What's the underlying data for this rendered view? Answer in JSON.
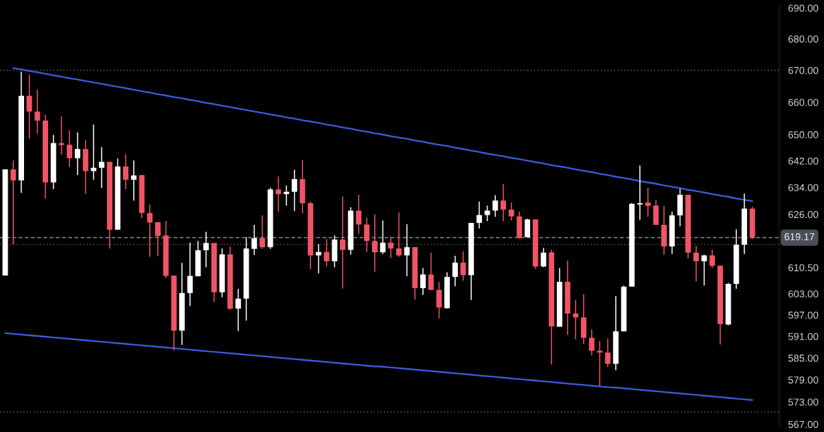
{
  "chart_data": {
    "type": "candlestick",
    "categories": [
      null,
      null,
      null,
      null,
      null,
      null,
      null,
      null,
      null,
      null,
      null,
      null,
      null,
      null,
      null,
      null,
      null,
      null,
      null,
      null,
      null,
      null,
      null,
      null,
      null,
      null,
      null,
      null,
      null,
      null,
      null,
      null,
      null,
      null,
      null,
      null,
      null,
      null,
      null,
      null,
      null,
      null,
      null,
      null,
      null,
      null,
      null,
      null,
      null,
      null,
      null,
      null,
      null,
      null,
      null,
      null,
      null,
      null,
      null,
      null,
      null,
      null,
      null,
      null,
      null,
      null,
      null,
      null,
      null,
      null,
      null,
      null,
      null,
      null,
      null,
      null,
      null,
      null,
      null,
      null,
      null,
      null,
      null,
      null,
      null,
      null,
      null,
      null,
      null,
      null,
      null,
      null,
      null,
      null
    ],
    "ohlc": [
      [
        608.2,
        639.4,
        608.2,
        639.4
      ],
      [
        639.4,
        642.1,
        617.2,
        636.1
      ],
      [
        636.1,
        669.6,
        632.4,
        662.0
      ],
      [
        662.0,
        668.7,
        648.8,
        657.1
      ],
      [
        657.1,
        663.9,
        650.2,
        654.3
      ],
      [
        654.3,
        656.1,
        630.7,
        635.5
      ],
      [
        635.5,
        649.9,
        633.5,
        647.4
      ],
      [
        647.4,
        655.6,
        643.9,
        646.8
      ],
      [
        646.9,
        651.3,
        640.2,
        642.8
      ],
      [
        642.8,
        650.7,
        637.7,
        645.6
      ],
      [
        645.6,
        648.3,
        632.1,
        638.9
      ],
      [
        638.9,
        653.1,
        636.3,
        639.9
      ],
      [
        639.9,
        646.2,
        633.8,
        641.7
      ],
      [
        641.7,
        641.7,
        616.0,
        621.5
      ],
      [
        621.5,
        642.7,
        621.5,
        640.3
      ],
      [
        640.3,
        644.0,
        633.5,
        636.3
      ],
      [
        636.3,
        642.1,
        630.1,
        637.6
      ],
      [
        637.7,
        637.7,
        624.9,
        626.4
      ],
      [
        626.4,
        628.9,
        613.6,
        623.6
      ],
      [
        623.7,
        623.7,
        613.8,
        619.6
      ],
      [
        619.8,
        624.0,
        607.5,
        608.1
      ],
      [
        608.2,
        608.2,
        587.1,
        592.6
      ],
      [
        592.6,
        611.8,
        588.6,
        603.2
      ],
      [
        603.2,
        617.7,
        599.5,
        608.1
      ],
      [
        608.0,
        618.2,
        608.0,
        615.5
      ],
      [
        615.5,
        620.9,
        610.6,
        617.6
      ],
      [
        617.6,
        617.6,
        600.7,
        603.4
      ],
      [
        603.4,
        616.0,
        602.0,
        614.3
      ],
      [
        614.3,
        616.6,
        598.5,
        598.7
      ],
      [
        598.8,
        604.4,
        592.5,
        601.6
      ],
      [
        601.6,
        619.3,
        595.4,
        616.0
      ],
      [
        615.9,
        622.9,
        614.1,
        619.0
      ],
      [
        619.0,
        625.7,
        615.9,
        616.4
      ],
      [
        616.4,
        633.9,
        615.9,
        633.4
      ],
      [
        633.4,
        637.3,
        626.8,
        632.0
      ],
      [
        632.0,
        634.6,
        628.6,
        632.7
      ],
      [
        632.7,
        639.3,
        627.0,
        636.5
      ],
      [
        636.5,
        642.3,
        626.3,
        629.3
      ],
      [
        629.3,
        629.8,
        610.1,
        614.0
      ],
      [
        614.0,
        617.3,
        608.8,
        615.0
      ],
      [
        615.0,
        618.8,
        610.8,
        612.3
      ],
      [
        612.3,
        619.8,
        610.6,
        618.6
      ],
      [
        618.6,
        631.3,
        604.5,
        615.6
      ],
      [
        615.6,
        628.1,
        614.2,
        627.1
      ],
      [
        627.1,
        631.8,
        620.2,
        623.0
      ],
      [
        623.0,
        625.0,
        615.1,
        618.2
      ],
      [
        618.2,
        626.0,
        609.3,
        614.9
      ],
      [
        614.9,
        624.2,
        614.4,
        617.7
      ],
      [
        617.7,
        619.5,
        613.3,
        616.0
      ],
      [
        616.0,
        626.6,
        613.6,
        614.0
      ],
      [
        614.0,
        623.1,
        608.0,
        616.4
      ],
      [
        616.4,
        616.4,
        601.3,
        604.6
      ],
      [
        604.6,
        610.4,
        602.7,
        608.5
      ],
      [
        608.5,
        614.8,
        604.0,
        604.1
      ],
      [
        604.1,
        606.4,
        596.0,
        599.1
      ],
      [
        598.9,
        609.1,
        598.8,
        607.8
      ],
      [
        607.8,
        613.9,
        605.1,
        611.9
      ],
      [
        611.9,
        615.2,
        606.7,
        608.3
      ],
      [
        608.3,
        623.5,
        601.2,
        623.5
      ],
      [
        623.5,
        629.8,
        621.9,
        625.8
      ],
      [
        625.8,
        628.6,
        624.0,
        627.1
      ],
      [
        627.1,
        631.7,
        625.3,
        630.1
      ],
      [
        630.1,
        635.0,
        624.0,
        627.4
      ],
      [
        627.4,
        629.5,
        624.2,
        625.4
      ],
      [
        625.4,
        626.8,
        618.8,
        619.1
      ],
      [
        619.3,
        624.7,
        619.3,
        624.5
      ],
      [
        624.5,
        624.5,
        610.1,
        610.8
      ],
      [
        610.8,
        616.2,
        610.6,
        614.8
      ],
      [
        614.9,
        615.7,
        583.2,
        593.8
      ],
      [
        593.7,
        610.4,
        593.7,
        606.4
      ],
      [
        606.4,
        612.5,
        591.4,
        597.4
      ],
      [
        597.4,
        601.2,
        590.2,
        596.3
      ],
      [
        596.3,
        602.9,
        588.8,
        590.6
      ],
      [
        590.6,
        592.9,
        585.7,
        587.0
      ],
      [
        587.0,
        589.7,
        577.2,
        586.5
      ],
      [
        586.5,
        590.4,
        582.5,
        583.4
      ],
      [
        583.4,
        602.3,
        581.6,
        592.4
      ],
      [
        592.4,
        605.3,
        592.4,
        605.0
      ],
      [
        605.0,
        629.3,
        605.0,
        629.1
      ],
      [
        628.9,
        640.6,
        624.4,
        629.3
      ],
      [
        629.5,
        633.9,
        625.3,
        628.5
      ],
      [
        628.6,
        630.3,
        622.9,
        622.9
      ],
      [
        622.9,
        628.5,
        614.2,
        616.6
      ],
      [
        616.6,
        626.8,
        614.4,
        625.7
      ],
      [
        625.7,
        633.6,
        622.5,
        631.8
      ],
      [
        631.8,
        631.8,
        613.2,
        614.8
      ],
      [
        614.8,
        616.8,
        606.5,
        612.3
      ],
      [
        612.3,
        614.2,
        605.3,
        614.0
      ],
      [
        614.0,
        615.7,
        610.4,
        611.0
      ],
      [
        611.0,
        611.0,
        588.7,
        594.4
      ],
      [
        594.3,
        606.1,
        594.1,
        605.8
      ],
      [
        605.8,
        621.6,
        604.4,
        617.1
      ],
      [
        617.1,
        632.2,
        614.4,
        627.7
      ],
      [
        627.7,
        628.3,
        618.8,
        619.17
      ]
    ],
    "colors": [
      "#ffffff",
      "#ef5566",
      "#ffffff",
      "#ef5566",
      "#ef5566",
      "#ef5566",
      "#ffffff",
      "#ef5566",
      "#ef5566",
      "#ffffff",
      "#ef5566",
      "#ffffff",
      "#ffffff",
      "#ef5566",
      "#ffffff",
      "#ef5566",
      "#ffffff",
      "#ef5566",
      "#ef5566",
      "#ef5566",
      "#ef5566",
      "#ef5566",
      "#ffffff",
      "#ffffff",
      "#ffffff",
      "#ffffff",
      "#ef5566",
      "#ffffff",
      "#ef5566",
      "#ffffff",
      "#ffffff",
      "#ffffff",
      "#ef5566",
      "#ffffff",
      "#ef5566",
      "#ffffff",
      "#ffffff",
      "#ef5566",
      "#ef5566",
      "#ffffff",
      "#ef5566",
      "#ffffff",
      "#ef5566",
      "#ffffff",
      "#ef5566",
      "#ef5566",
      "#ef5566",
      "#ffffff",
      "#ef5566",
      "#ef5566",
      "#ffffff",
      "#ef5566",
      "#ffffff",
      "#ef5566",
      "#ef5566",
      "#ffffff",
      "#ffffff",
      "#ef5566",
      "#ffffff",
      "#ffffff",
      "#ffffff",
      "#ffffff",
      "#ef5566",
      "#ef5566",
      "#ef5566",
      "#ffffff",
      "#ef5566",
      "#ffffff",
      "#ef5566",
      "#ffffff",
      "#ef5566",
      "#ef5566",
      "#ef5566",
      "#ef5566",
      "#ef5566",
      "#ef5566",
      "#ffffff",
      "#ffffff",
      "#ffffff",
      "#ffffff",
      "#ef5566",
      "#ef5566",
      "#ef5566",
      "#ffffff",
      "#ffffff",
      "#ef5566",
      "#ef5566",
      "#ffffff",
      "#ef5566",
      "#ef5566",
      "#ffffff",
      "#ffffff",
      "#ffffff",
      "#ef5566"
    ],
    "series": [
      {
        "type": "line",
        "color": "#3b5bdb",
        "values": [
          null,
          670.7,
          670.3,
          669.8,
          669.4,
          668.9,
          668.4,
          668.0,
          667.5,
          667.1,
          666.6,
          666.2,
          665.7,
          665.3,
          664.8,
          664.4,
          663.9,
          663.4,
          663.0,
          662.5,
          662.1,
          661.6,
          661.2,
          660.7,
          660.3,
          659.8,
          659.4,
          658.9,
          658.5,
          658.0,
          657.6,
          657.1,
          656.7,
          656.2,
          655.8,
          655.3,
          654.9,
          654.4,
          654.0,
          653.6,
          653.1,
          652.7,
          652.2,
          651.8,
          651.3,
          650.9,
          650.4,
          650.0,
          649.5,
          649.1,
          648.7,
          648.2,
          647.8,
          647.3,
          646.9,
          646.5,
          646.0,
          645.6,
          645.1,
          644.7,
          644.2,
          643.8,
          643.4,
          642.9,
          642.5,
          642.1,
          641.6,
          641.2,
          640.7,
          640.3,
          639.9,
          639.4,
          639.0,
          638.6,
          638.1,
          637.7,
          637.2,
          636.8,
          636.4,
          635.9,
          635.5,
          635.1,
          634.6,
          634.2,
          633.8,
          633.3,
          632.9,
          632.5,
          632.0,
          631.6,
          631.2,
          630.7,
          630.3,
          629.9
        ]
      },
      {
        "type": "line",
        "color": "#3b5bdb",
        "values": [
          591.9,
          591.7,
          591.5,
          591.3,
          591.1,
          590.9,
          590.7,
          590.5,
          590.3,
          590.1,
          589.9,
          589.7,
          589.5,
          589.3,
          589.1,
          588.9,
          588.7,
          588.5,
          588.3,
          588.1,
          587.9,
          587.7,
          587.5,
          587.3,
          587.1,
          586.9,
          586.7,
          586.5,
          586.3,
          586.1,
          585.9,
          585.7,
          585.5,
          585.3,
          585.1,
          584.9,
          584.7,
          584.5,
          584.3,
          584.1,
          583.9,
          583.7,
          583.5,
          583.3,
          583.1,
          582.9,
          582.7,
          582.6,
          582.4,
          582.2,
          582.0,
          581.8,
          581.6,
          581.4,
          581.2,
          581.0,
          580.8,
          580.6,
          580.4,
          580.2,
          580.0,
          579.8,
          579.6,
          579.4,
          579.2,
          579.0,
          578.8,
          578.6,
          578.4,
          578.2,
          578.0,
          577.8,
          577.6,
          577.4,
          577.2,
          577.0,
          576.9,
          576.7,
          576.5,
          576.3,
          576.1,
          575.9,
          575.7,
          575.5,
          575.3,
          575.1,
          574.9,
          574.7,
          574.5,
          574.3,
          574.1,
          573.9,
          573.7,
          573.5
        ]
      }
    ],
    "log": true,
    "ylim": [
      566.4,
      690.8
    ],
    "yticks": [
      {
        "value": 567,
        "label": "567.00"
      },
      {
        "value": 573,
        "label": "573.00"
      },
      {
        "value": 579,
        "label": "579.00"
      },
      {
        "value": 585,
        "label": "585.00"
      },
      {
        "value": 591,
        "label": "591.00"
      },
      {
        "value": 597,
        "label": "597.00"
      },
      {
        "value": 603,
        "label": "603.00"
      },
      {
        "value": 610.5,
        "label": "610.50"
      },
      {
        "value": 626,
        "label": "626.00"
      },
      {
        "value": 634,
        "label": "634.00"
      },
      {
        "value": 642,
        "label": "642.00"
      },
      {
        "value": 650,
        "label": "650.00"
      },
      {
        "value": 660,
        "label": "660.00"
      },
      {
        "value": 670,
        "label": "670.00"
      },
      {
        "value": 680,
        "label": "680.00"
      },
      {
        "value": 690,
        "label": "690.00"
      }
    ],
    "tick_labels": "y",
    "ref_lines": [
      {
        "axis": "y",
        "value": 619.17,
        "label": "619.17",
        "color": "#8c8c8c",
        "line_style": "dashed"
      },
      {
        "axis": "y",
        "value": 670,
        "color": "#6e6e6e",
        "line_style": "dotted"
      },
      {
        "axis": "y",
        "value": 617.2,
        "color": "#6e6e6e",
        "line_style": "dotted"
      },
      {
        "axis": "y",
        "value": 570.3,
        "color": "#6e6e6e",
        "line_style": "dotted"
      }
    ]
  }
}
